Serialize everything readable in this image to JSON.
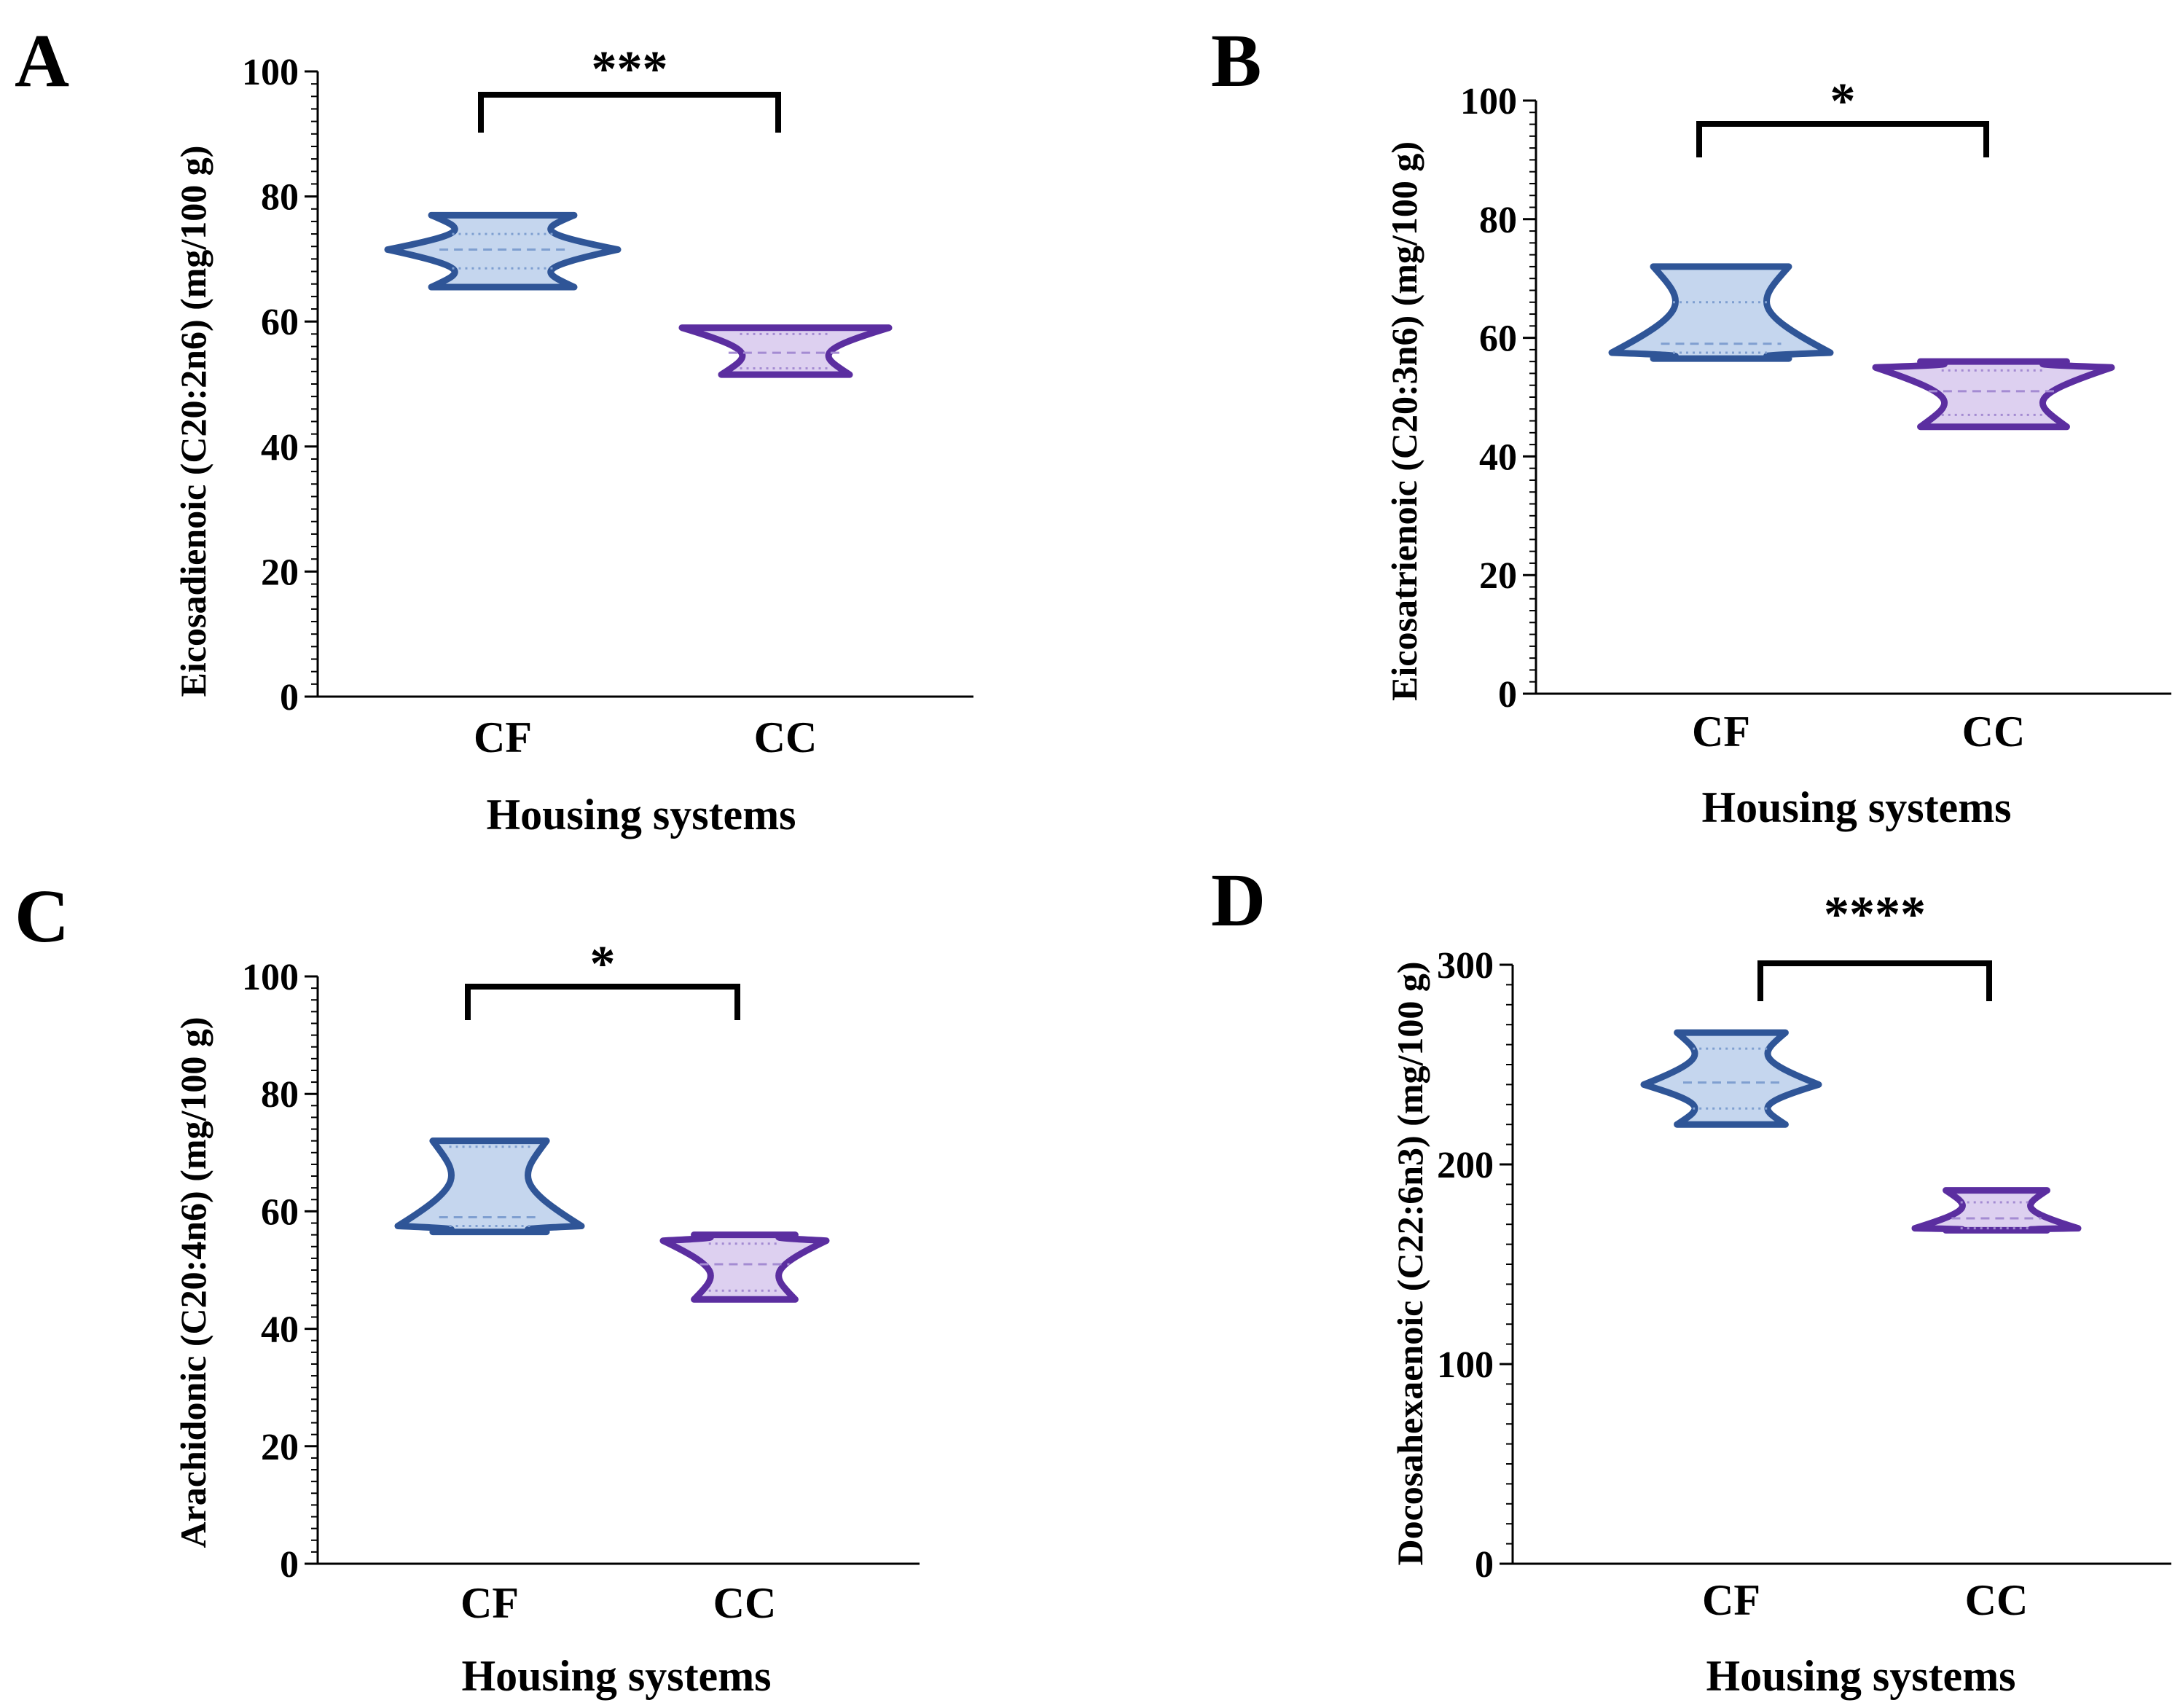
{
  "figure": {
    "colors": {
      "cf_stroke": "#2f5597",
      "cf_fill": "#c5d6ee",
      "cf_quartile": "#7f9fd0",
      "cc_stroke": "#5b2ea0",
      "cc_fill": "#ddd0f0",
      "cc_quartile": "#a48bd2",
      "axis": "#000000"
    }
  },
  "chart_data": [
    {
      "panel": "A",
      "type": "violin",
      "ylabel": "Eicosadienoic (C20:2n6) (mg/100 g)",
      "xlabel": "Housing systems",
      "categories": [
        "CF",
        "CC"
      ],
      "ylim": [
        0,
        100
      ],
      "yticks": [
        0,
        20,
        40,
        60,
        80,
        100
      ],
      "minor_step": 2,
      "series": [
        {
          "name": "CF",
          "min": 65.5,
          "q1": 68.5,
          "median": 71.5,
          "q3": 74.0,
          "max": 77.0,
          "widest": 71.5
        },
        {
          "name": "CC",
          "min": 51.5,
          "q1": 52.5,
          "median": 55.0,
          "q3": 58.0,
          "max": 59.0,
          "widest": 59.0
        }
      ],
      "significance": {
        "text": "***",
        "from": "CF",
        "to": "CC"
      }
    },
    {
      "panel": "B",
      "type": "violin",
      "ylabel": "Eicosatrienoic (C20:3n6) (mg/100 g)",
      "xlabel": "Housing systems",
      "categories": [
        "CF",
        "CC"
      ],
      "ylim": [
        0,
        100
      ],
      "yticks": [
        0,
        20,
        40,
        60,
        80,
        100
      ],
      "minor_step": 2,
      "series": [
        {
          "name": "CF",
          "min": 56.5,
          "q1": 57.5,
          "median": 59.0,
          "q3": 66.0,
          "max": 72.0,
          "widest": 57.5
        },
        {
          "name": "CC",
          "min": 45.0,
          "q1": 47.0,
          "median": 51.0,
          "q3": 54.5,
          "max": 56.0,
          "widest": 55.0
        }
      ],
      "significance": {
        "text": "*",
        "from": "CF",
        "to": "CC"
      }
    },
    {
      "panel": "C",
      "type": "violin",
      "ylabel": "Arachidonic (C20:4n6) (mg/100 g)",
      "xlabel": "Housing systems",
      "categories": [
        "CF",
        "CC"
      ],
      "ylim": [
        0,
        100
      ],
      "yticks": [
        0,
        20,
        40,
        60,
        80,
        100
      ],
      "minor_step": 2,
      "series": [
        {
          "name": "CF",
          "min": 56.5,
          "q1": 57.5,
          "median": 59.0,
          "q3": 71.0,
          "max": 72.0,
          "widest": 57.5
        },
        {
          "name": "CC",
          "min": 45.0,
          "q1": 46.5,
          "median": 51.0,
          "q3": 54.5,
          "max": 56.0,
          "widest": 55.0
        }
      ],
      "significance": {
        "text": "*",
        "from": "CF",
        "to": "CC"
      }
    },
    {
      "panel": "D",
      "type": "violin",
      "ylabel": "Docosahexaenoic (C22:6n3) (mg/100 g)",
      "xlabel": "Housing systems",
      "categories": [
        "CF",
        "CC"
      ],
      "ylim": [
        0,
        300
      ],
      "yticks": [
        0,
        100,
        200,
        300
      ],
      "minor_step": 10,
      "series": [
        {
          "name": "CF",
          "min": 220.0,
          "q1": 228.0,
          "median": 241.0,
          "q3": 258.0,
          "max": 266.0,
          "widest": 240.0
        },
        {
          "name": "CC",
          "min": 167.0,
          "q1": 168.0,
          "median": 173.0,
          "q3": 181.0,
          "max": 187.0,
          "widest": 168.0
        }
      ],
      "significance": {
        "text": "****",
        "from": "CF",
        "to": "CC"
      }
    }
  ]
}
